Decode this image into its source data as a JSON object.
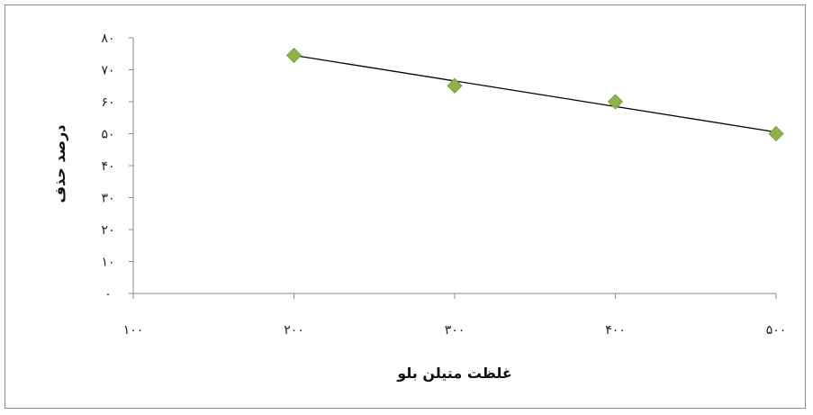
{
  "chart_data": {
    "type": "scatter",
    "title": "",
    "xlabel": "غلظت متیلن بلو",
    "ylabel": "درصد حذف",
    "xlim": [
      100,
      500
    ],
    "ylim": [
      0,
      80
    ],
    "x_ticks": [
      100,
      200,
      300,
      400,
      500
    ],
    "y_ticks": [
      0,
      10,
      20,
      30,
      40,
      50,
      60,
      70,
      80
    ],
    "x_tick_labels": [
      "۱۰۰",
      "۲۰۰",
      "۳۰۰",
      "۴۰۰",
      "۵۰۰"
    ],
    "y_tick_labels": [
      "۰",
      "۱۰",
      "۲۰",
      "۳۰",
      "۴۰",
      "۵۰",
      "۶۰",
      "۷۰",
      "۸۰"
    ],
    "series": [
      {
        "marker": "diamond",
        "color": "#8db44a",
        "x": [
          200,
          300,
          400,
          500
        ],
        "y": [
          74.5,
          65,
          60,
          50
        ]
      }
    ],
    "trendline": {
      "type": "linear",
      "color": "#000000",
      "x": [
        200,
        500
      ],
      "y": [
        74.5,
        50.5
      ]
    },
    "grid": false,
    "legend": "none"
  }
}
